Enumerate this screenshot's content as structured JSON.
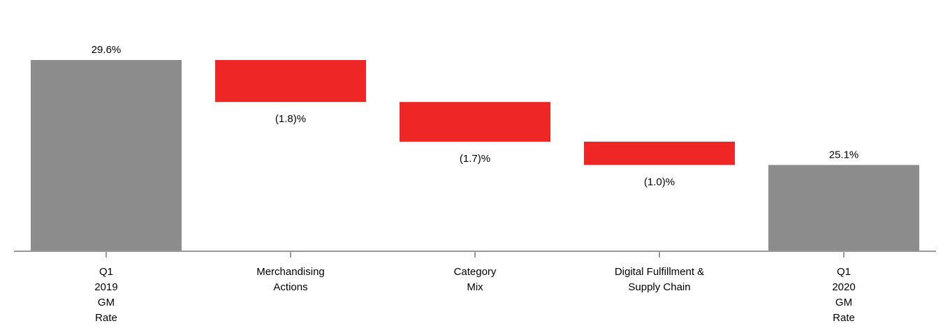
{
  "chart_data": {
    "type": "bar",
    "subtype": "waterfall",
    "title": "",
    "xlabel": "",
    "ylabel": "",
    "ylim": [
      21.4,
      30.4
    ],
    "grid": false,
    "categories": [
      [
        "Q1",
        "2019",
        "GM",
        "Rate"
      ],
      [
        "Merchandising",
        "Actions"
      ],
      [
        "Category",
        "Mix"
      ],
      [
        "Digital Fulfillment &",
        "Supply Chain"
      ],
      [
        "Q1",
        "2020",
        "GM",
        "Rate"
      ]
    ],
    "values": [
      29.6,
      -1.8,
      -1.7,
      -1.0,
      25.1
    ],
    "bar_kinds": [
      "total",
      "delta",
      "delta",
      "delta",
      "total"
    ],
    "data_labels": [
      "29.6%",
      "(1.8)%",
      "(1.7)%",
      "(1.0)%",
      "25.1%"
    ],
    "colors": {
      "total": "#8c8c8c",
      "decrease": "#ee2726",
      "axis": "#999999",
      "text": "#000000"
    }
  }
}
